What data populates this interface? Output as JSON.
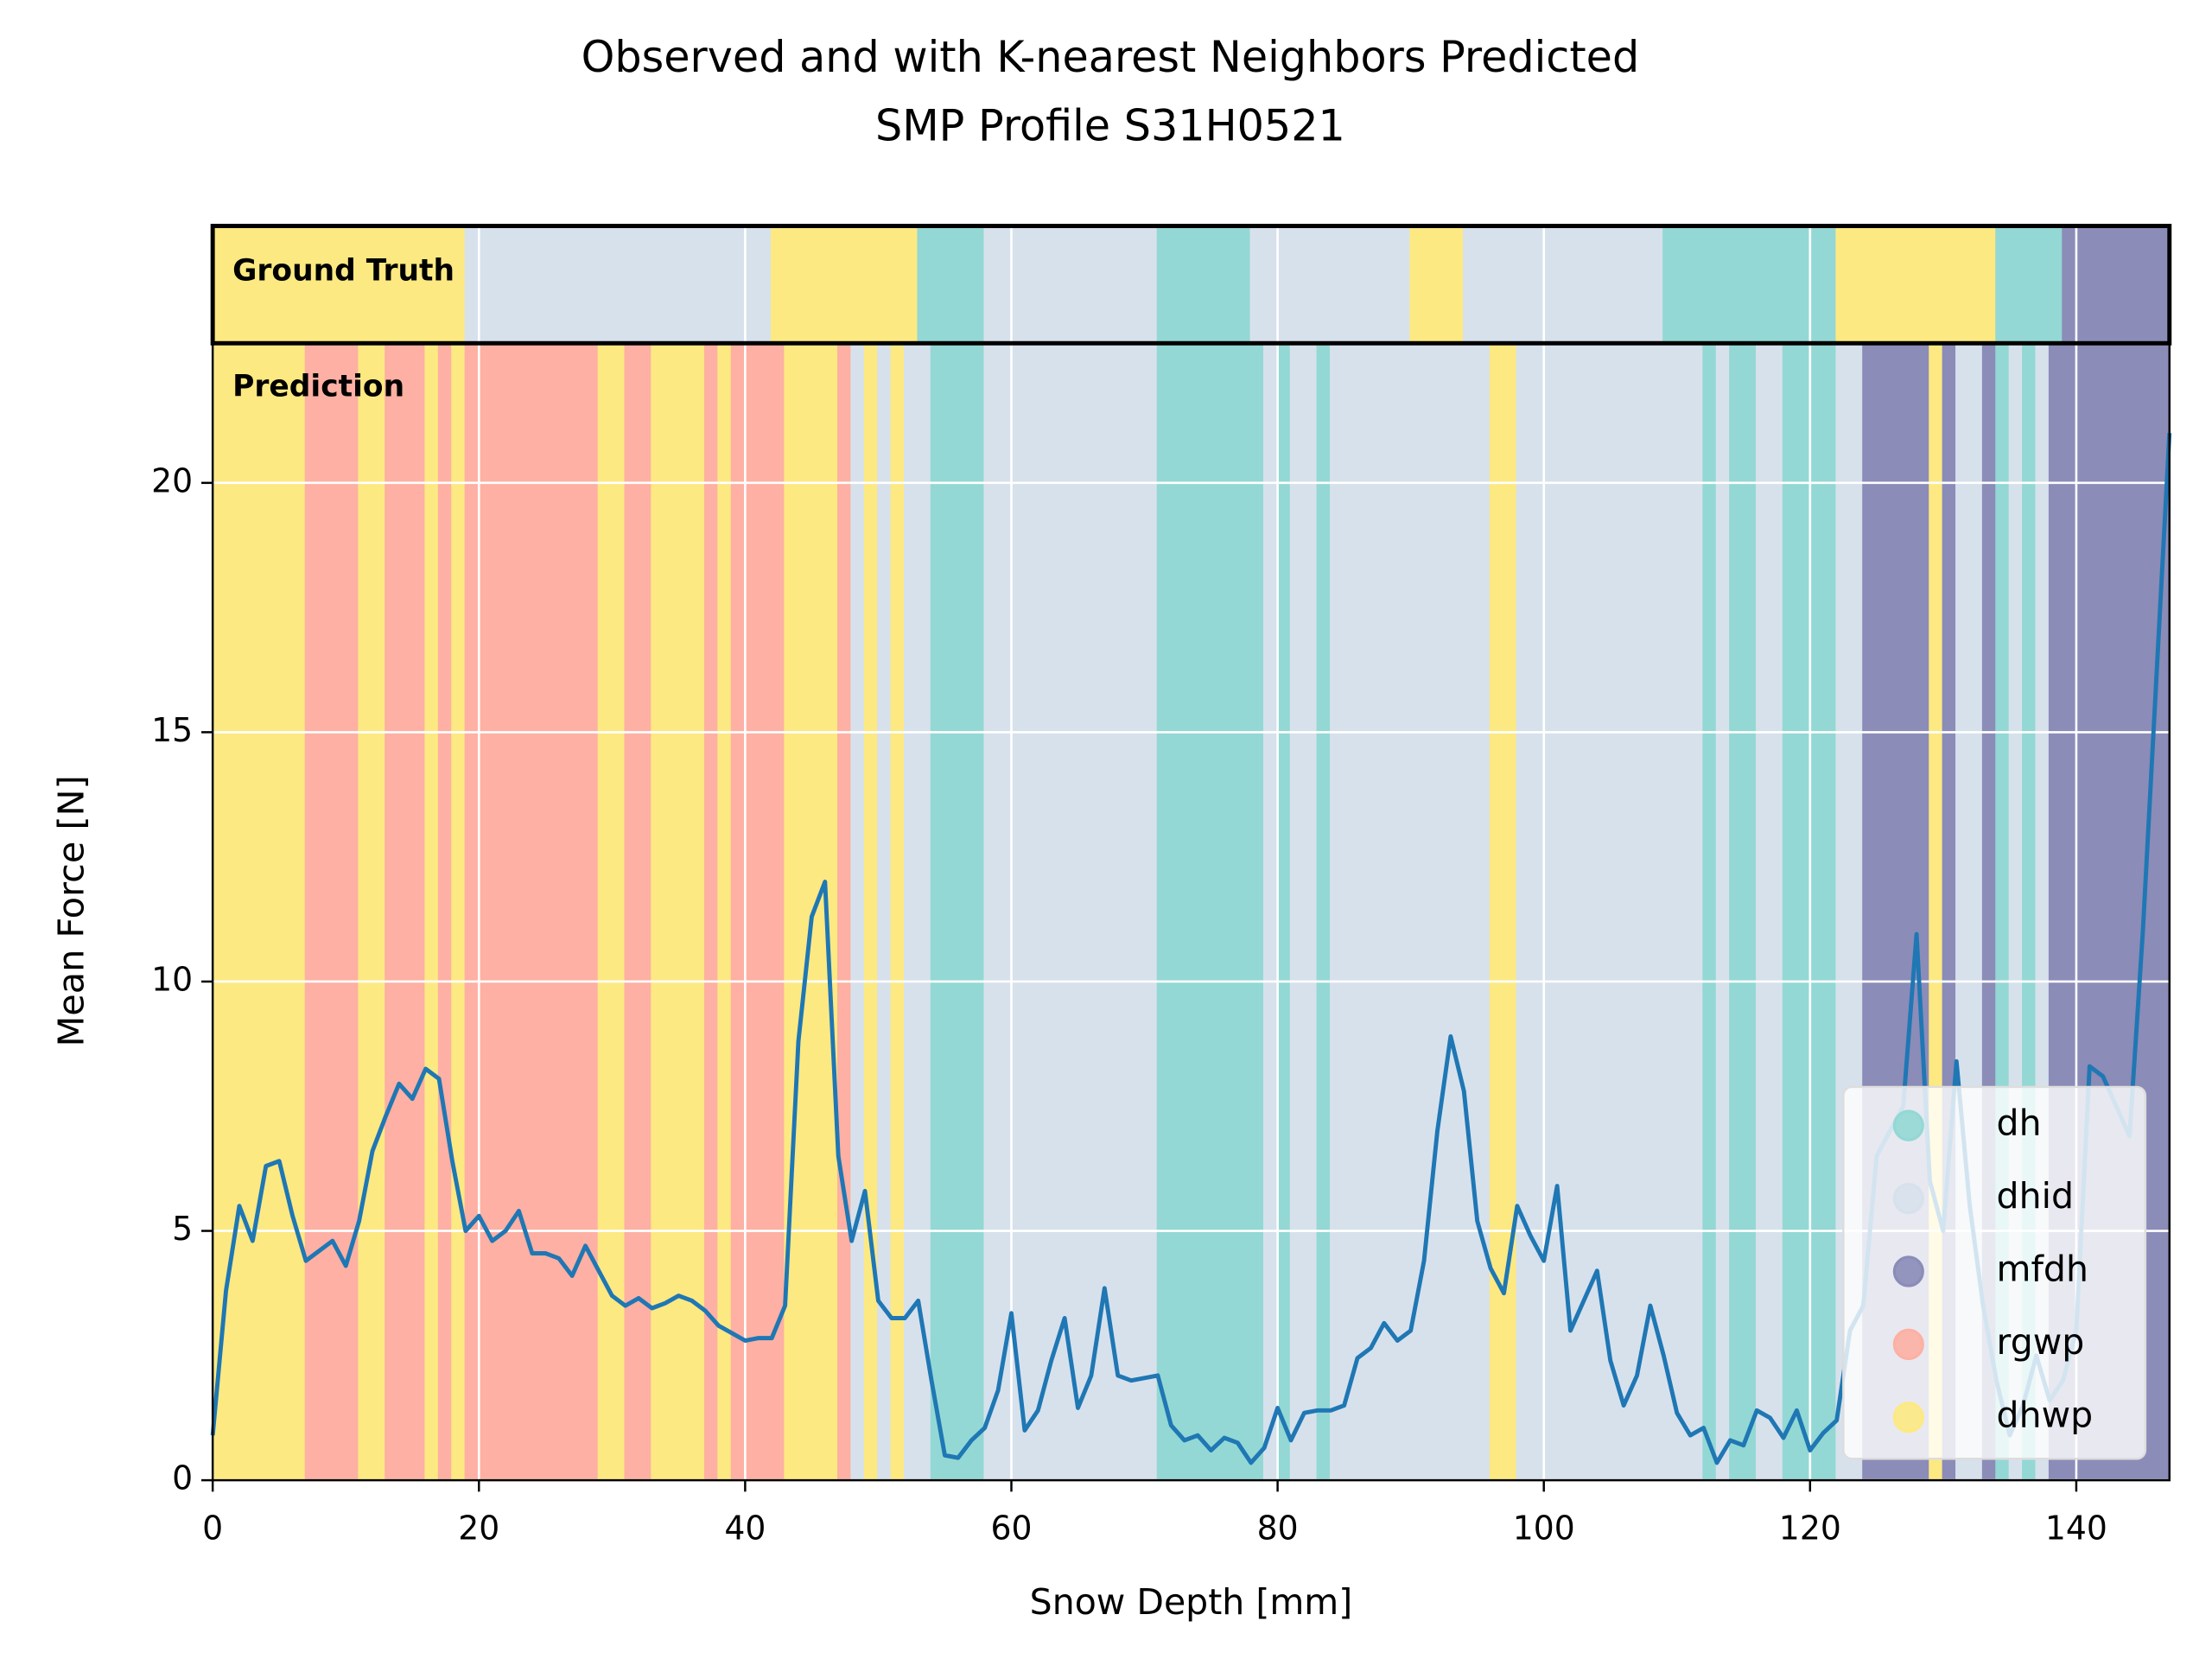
{
  "chart_data": {
    "type": "line",
    "title": [
      "Observed and with K-nearest Neighbors Predicted",
      "SMP Profile S31H0521"
    ],
    "xlabel": "Snow Depth [mm]",
    "ylabel": "Mean Force [N]",
    "panel_labels": {
      "ground_truth": "Ground Truth",
      "prediction": "Prediction"
    },
    "xlim": [
      0,
      147
    ],
    "ylim": [
      0,
      22.8
    ],
    "xticks": [
      0,
      20,
      40,
      60,
      80,
      100,
      120,
      140
    ],
    "yticks": [
      0,
      5,
      10,
      15,
      20
    ],
    "grid": true,
    "legend": "lower right",
    "classes": [
      {
        "name": "dh",
        "color": "#93d8d4"
      },
      {
        "name": "dhid",
        "color": "#d7e1ec"
      },
      {
        "name": "mfdh",
        "color": "#8b8cb8"
      },
      {
        "name": "rgwp",
        "color": "#fdb0a3"
      },
      {
        "name": "dhwp",
        "color": "#fde982"
      }
    ],
    "ground_truth": [
      {
        "class": "dhwp",
        "start": 0,
        "end": 19
      },
      {
        "class": "dhid",
        "start": 19,
        "end": 42
      },
      {
        "class": "dhwp",
        "start": 42,
        "end": 53
      },
      {
        "class": "dh",
        "start": 53,
        "end": 58
      },
      {
        "class": "dhid",
        "start": 58,
        "end": 71
      },
      {
        "class": "dh",
        "start": 71,
        "end": 78
      },
      {
        "class": "dhid",
        "start": 78,
        "end": 90
      },
      {
        "class": "dhwp",
        "start": 90,
        "end": 94
      },
      {
        "class": "dhid",
        "start": 94,
        "end": 109
      },
      {
        "class": "dh",
        "start": 109,
        "end": 122
      },
      {
        "class": "dhwp",
        "start": 122,
        "end": 134
      },
      {
        "class": "dh",
        "start": 134,
        "end": 139
      },
      {
        "class": "mfdh",
        "start": 139,
        "end": 147
      }
    ],
    "prediction": [
      {
        "class": "dhwp",
        "start": 0,
        "end": 7
      },
      {
        "class": "rgwp",
        "start": 7,
        "end": 11
      },
      {
        "class": "dhwp",
        "start": 11,
        "end": 13
      },
      {
        "class": "rgwp",
        "start": 13,
        "end": 16
      },
      {
        "class": "dhwp",
        "start": 16,
        "end": 17
      },
      {
        "class": "rgwp",
        "start": 17,
        "end": 18
      },
      {
        "class": "dhwp",
        "start": 18,
        "end": 19
      },
      {
        "class": "rgwp",
        "start": 19,
        "end": 29
      },
      {
        "class": "dhwp",
        "start": 29,
        "end": 31
      },
      {
        "class": "rgwp",
        "start": 31,
        "end": 33
      },
      {
        "class": "dhwp",
        "start": 33,
        "end": 37
      },
      {
        "class": "rgwp",
        "start": 37,
        "end": 38
      },
      {
        "class": "dhwp",
        "start": 38,
        "end": 39
      },
      {
        "class": "rgwp",
        "start": 39,
        "end": 43
      },
      {
        "class": "dhwp",
        "start": 43,
        "end": 47
      },
      {
        "class": "rgwp",
        "start": 47,
        "end": 48
      },
      {
        "class": "dhid",
        "start": 48,
        "end": 49
      },
      {
        "class": "dhwp",
        "start": 49,
        "end": 50
      },
      {
        "class": "dhid",
        "start": 50,
        "end": 51
      },
      {
        "class": "dhwp",
        "start": 51,
        "end": 52
      },
      {
        "class": "dhid",
        "start": 52,
        "end": 54
      },
      {
        "class": "dh",
        "start": 54,
        "end": 58
      },
      {
        "class": "dhid",
        "start": 58,
        "end": 71
      },
      {
        "class": "dh",
        "start": 71,
        "end": 79
      },
      {
        "class": "dhid",
        "start": 79,
        "end": 80
      },
      {
        "class": "dh",
        "start": 80,
        "end": 81
      },
      {
        "class": "dhid",
        "start": 81,
        "end": 83
      },
      {
        "class": "dh",
        "start": 83,
        "end": 84
      },
      {
        "class": "dhid",
        "start": 84,
        "end": 96
      },
      {
        "class": "dhwp",
        "start": 96,
        "end": 98
      },
      {
        "class": "dhid",
        "start": 98,
        "end": 112
      },
      {
        "class": "dh",
        "start": 112,
        "end": 113
      },
      {
        "class": "dhid",
        "start": 113,
        "end": 114
      },
      {
        "class": "dh",
        "start": 114,
        "end": 116
      },
      {
        "class": "dhid",
        "start": 116,
        "end": 118
      },
      {
        "class": "dh",
        "start": 118,
        "end": 122
      },
      {
        "class": "dhid",
        "start": 122,
        "end": 124
      },
      {
        "class": "mfdh",
        "start": 124,
        "end": 129
      },
      {
        "class": "dhwp",
        "start": 129,
        "end": 130
      },
      {
        "class": "mfdh",
        "start": 130,
        "end": 131
      },
      {
        "class": "dhid",
        "start": 131,
        "end": 133
      },
      {
        "class": "mfdh",
        "start": 133,
        "end": 134
      },
      {
        "class": "dh",
        "start": 134,
        "end": 135
      },
      {
        "class": "dhid",
        "start": 135,
        "end": 136
      },
      {
        "class": "dh",
        "start": 136,
        "end": 137
      },
      {
        "class": "dhid",
        "start": 137,
        "end": 138
      },
      {
        "class": "mfdh",
        "start": 138,
        "end": 147
      }
    ],
    "line_color": "#1f77b4",
    "x": [
      0,
      1,
      2,
      3,
      4,
      5,
      6,
      7,
      8,
      9,
      10,
      11,
      12,
      13,
      14,
      15,
      16,
      17,
      18,
      19,
      20,
      21,
      22,
      23,
      24,
      25,
      26,
      27,
      28,
      29,
      30,
      31,
      32,
      33,
      34,
      35,
      36,
      37,
      38,
      39,
      40,
      41,
      42,
      43,
      44,
      45,
      46,
      47,
      48,
      49,
      50,
      51,
      52,
      53,
      54,
      55,
      56,
      57,
      58,
      59,
      60,
      61,
      62,
      63,
      64,
      65,
      66,
      67,
      68,
      69,
      70,
      71,
      72,
      73,
      74,
      75,
      76,
      77,
      78,
      79,
      80,
      81,
      82,
      83,
      84,
      85,
      86,
      87,
      88,
      89,
      90,
      91,
      92,
      93,
      94,
      95,
      96,
      97,
      98,
      99,
      100,
      101,
      102,
      103,
      104,
      105,
      106,
      107,
      108,
      109,
      110,
      111,
      112,
      113,
      114,
      115,
      116,
      117,
      118,
      119,
      120,
      121,
      122,
      123,
      124,
      125,
      126,
      127,
      128,
      129,
      130,
      131,
      132,
      133,
      134,
      135,
      136,
      137,
      138,
      139,
      140,
      141,
      142,
      143,
      144,
      145,
      146,
      147
    ],
    "values": [
      0.9,
      3.8,
      5.5,
      4.8,
      6.3,
      6.4,
      5.3,
      4.4,
      4.6,
      4.8,
      4.3,
      5.2,
      6.6,
      7.3,
      7.95,
      7.65,
      8.25,
      8.05,
      6.4,
      5.0,
      5.3,
      4.8,
      5.0,
      5.4,
      4.55,
      4.55,
      4.45,
      4.1,
      4.7,
      4.2,
      3.7,
      3.5,
      3.65,
      3.45,
      3.55,
      3.7,
      3.6,
      3.4,
      3.1,
      2.95,
      2.8,
      2.85,
      2.85,
      3.5,
      8.8,
      11.3,
      12.0,
      6.5,
      4.8,
      5.8,
      3.6,
      3.25,
      3.25,
      3.6,
      2.0,
      0.5,
      0.45,
      0.8,
      1.05,
      1.8,
      3.35,
      1.0,
      1.4,
      2.4,
      3.25,
      1.45,
      2.1,
      3.85,
      2.1,
      2.0,
      2.05,
      2.1,
      1.1,
      0.8,
      0.9,
      0.6,
      0.85,
      0.75,
      0.35,
      0.65,
      1.45,
      0.8,
      1.35,
      1.4,
      1.4,
      1.5,
      2.45,
      2.65,
      3.15,
      2.8,
      3.0,
      4.4,
      7.0,
      8.9,
      7.8,
      5.2,
      4.25,
      3.75,
      5.5,
      4.9,
      4.4,
      5.9,
      3.0,
      3.6,
      4.2,
      2.4,
      1.5,
      2.1,
      3.5,
      2.5,
      1.35,
      0.9,
      1.05,
      0.35,
      0.8,
      0.7,
      1.4,
      1.25,
      0.85,
      1.4,
      0.6,
      0.95,
      1.2,
      3.0,
      3.5,
      6.5,
      7.0,
      7.5,
      10.95,
      6.0,
      5.0,
      8.4,
      5.5,
      3.5,
      2.0,
      0.9,
      1.5,
      2.5,
      1.6,
      2.0,
      3.0,
      8.3,
      8.1,
      7.5,
      6.9,
      11.0,
      16.0,
      21.0
    ]
  }
}
